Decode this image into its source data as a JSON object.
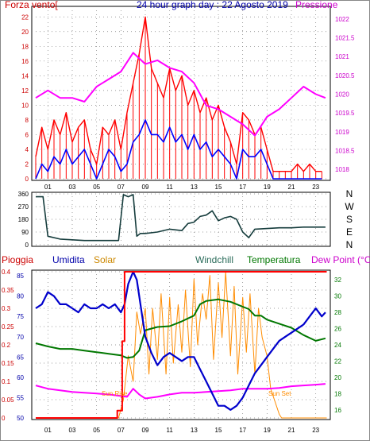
{
  "chart_data": [
    {
      "type": "line",
      "panel": "wind-pressure",
      "title": "24 hour graph day : 22 Agosto 2019",
      "left_label": "Forza vento[",
      "right_label": "Pressione",
      "x_ticks": [
        "01",
        "03",
        "05",
        "07",
        "09",
        "11",
        "13",
        "15",
        "17",
        "19",
        "21",
        "23"
      ],
      "y_left_ticks": [
        0,
        2,
        4,
        6,
        8,
        10,
        12,
        14,
        16,
        18,
        20,
        22
      ],
      "y_right_ticks": [
        1018,
        1018.5,
        1019,
        1019.5,
        1020,
        1020.5,
        1021,
        1021.5,
        1022
      ],
      "ylim_left": [
        0,
        23
      ],
      "ylim_right": [
        1017.75,
        1022.25
      ],
      "grid": true,
      "colors": {
        "gust": "#ff0000",
        "wind": "#0000ff",
        "pressure": "#ff00ff",
        "left_axis": "#cc0000",
        "right_axis": "#cc00cc"
      },
      "series": [
        {
          "key": "gust",
          "x": [
            0,
            0.5,
            1,
            1.5,
            2,
            2.5,
            3,
            3.5,
            4,
            4.5,
            5,
            5.5,
            6,
            6.5,
            7,
            7.5,
            8,
            8.5,
            9,
            9.5,
            10,
            10.5,
            11,
            11.5,
            12,
            12.5,
            13,
            13.5,
            14,
            14.5,
            15,
            15.5,
            16,
            16.5,
            17,
            17.5,
            18,
            18.5,
            19,
            19.5,
            20,
            20.5,
            21,
            21.5,
            22,
            22.5,
            23,
            23.5
          ],
          "y": [
            3,
            7,
            4,
            8,
            6,
            9,
            5,
            7,
            8,
            4,
            2,
            7,
            6,
            8,
            4,
            9,
            13,
            17,
            22,
            15,
            13,
            11,
            15,
            12,
            14,
            10,
            12,
            9,
            11,
            8,
            10,
            7,
            5,
            2,
            9,
            8,
            6,
            7,
            4,
            1,
            1,
            1,
            1,
            2,
            1,
            2,
            1,
            1
          ]
        },
        {
          "key": "wind",
          "x": [
            0,
            0.5,
            1,
            1.5,
            2,
            2.5,
            3,
            3.5,
            4,
            4.5,
            5,
            5.5,
            6,
            6.5,
            7,
            7.5,
            8,
            8.5,
            9,
            9.5,
            10,
            10.5,
            11,
            11.5,
            12,
            12.5,
            13,
            13.5,
            14,
            14.5,
            15,
            15.5,
            16,
            16.5,
            17,
            17.5,
            18,
            18.5,
            19,
            19.5,
            20,
            20.5,
            21,
            21.5,
            22,
            22.5,
            23,
            23.5
          ],
          "y": [
            0,
            2,
            1,
            3,
            2,
            4,
            2,
            3,
            4,
            2,
            0,
            2,
            4,
            3,
            1,
            2,
            5,
            6,
            8,
            6,
            6,
            5,
            7,
            5,
            6,
            4,
            6,
            4,
            5,
            3,
            4,
            3,
            2,
            0,
            4,
            3,
            3,
            4,
            2,
            0,
            0,
            0,
            0,
            0,
            0,
            0,
            0,
            0
          ]
        },
        {
          "key": "pressure",
          "x": [
            0,
            1,
            2,
            3,
            4,
            5,
            6,
            7,
            8,
            9,
            10,
            11,
            12,
            13,
            14,
            15,
            16,
            17,
            18,
            19,
            20,
            21,
            22,
            23,
            23.8
          ],
          "y": [
            1019.9,
            1020.1,
            1019.9,
            1019.9,
            1019.8,
            1020.2,
            1020.4,
            1020.6,
            1021.1,
            1020.8,
            1020.9,
            1020.7,
            1020.6,
            1020.3,
            1019.7,
            1019.6,
            1019.4,
            1019.2,
            1018.9,
            1019.4,
            1019.6,
            1019.9,
            1020.2,
            1020.0,
            1019.9
          ]
        }
      ]
    },
    {
      "type": "line",
      "panel": "wind-direction",
      "y_left_ticks": [
        0,
        90,
        180,
        270,
        360
      ],
      "ylim": [
        0,
        360
      ],
      "compass_labels": [
        "N",
        "W",
        "S",
        "E",
        "N"
      ],
      "x_ticks": [
        "01",
        "03",
        "05",
        "07",
        "09",
        "11",
        "13",
        "15",
        "17",
        "19",
        "21",
        "23"
      ],
      "grid": true,
      "colors": {
        "direction": "#153c3c"
      },
      "series": [
        {
          "key": "direction",
          "x": [
            0,
            0.3,
            0.6,
            1,
            2,
            3,
            4,
            5,
            6,
            6.8,
            7.2,
            7.6,
            8,
            8.3,
            8.6,
            9,
            10,
            11,
            12,
            12.5,
            13,
            13.5,
            14,
            14.5,
            15,
            15.5,
            16,
            16.5,
            17,
            17.5,
            18,
            19,
            20,
            21,
            22,
            23,
            23.8
          ],
          "y": [
            340,
            340,
            340,
            60,
            40,
            35,
            30,
            30,
            30,
            30,
            355,
            340,
            355,
            60,
            80,
            80,
            90,
            110,
            100,
            150,
            160,
            200,
            210,
            240,
            170,
            190,
            200,
            180,
            90,
            50,
            110,
            115,
            120,
            120,
            125,
            125,
            125
          ]
        }
      ]
    },
    {
      "type": "line",
      "panel": "rain-humidity-temp",
      "labels": [
        "Pioggia",
        "Umidita",
        "Solar",
        "Windchill",
        "Temperatura",
        "Dew Point (°C)"
      ],
      "annotations": [
        "Sun Rise",
        "Sun Set"
      ],
      "x_ticks": [
        "01",
        "03",
        "05",
        "07",
        "09",
        "11",
        "13",
        "15",
        "17",
        "19",
        "21",
        "23"
      ],
      "y_left_outer_ticks": [
        "0",
        "0.05",
        "0.1",
        "0.15",
        "0.2",
        "0.25",
        "0.3",
        "0.35",
        "0.4"
      ],
      "y_left_inner_ticks": [
        "50",
        "55",
        "60",
        "65",
        "70",
        "75",
        "80",
        "85"
      ],
      "y_right_ticks": [
        "16",
        "18",
        "20",
        "22",
        "24",
        "26",
        "28",
        "30",
        "32"
      ],
      "ylim_rain": [
        0,
        0.4
      ],
      "ylim_humidity": [
        50,
        86
      ],
      "ylim_temp": [
        15,
        33
      ],
      "grid": true,
      "colors": {
        "rain": "#ff0000",
        "humidity": "#0000cc",
        "solar": "#ff8c00",
        "temperature": "#007700",
        "dewpoint": "#ff00ff",
        "axis_rain": "#cc0000",
        "axis_humidity": "#0000aa",
        "axis_temp": "#007700"
      },
      "series": [
        {
          "key": "rain",
          "x": [
            0,
            6.7,
            6.7,
            7.1,
            7.1,
            7.3,
            7.3,
            23.9
          ],
          "y": [
            0,
            0,
            0.02,
            0.02,
            0.21,
            0.21,
            0.4,
            0.4
          ]
        },
        {
          "key": "humidity",
          "x": [
            0,
            0.5,
            1,
            1.5,
            2,
            2.5,
            3,
            3.5,
            4,
            4.5,
            5,
            5.5,
            6,
            6.5,
            7,
            7.3,
            7.6,
            8,
            8.3,
            8.7,
            9,
            9.5,
            10,
            10.5,
            11,
            11.5,
            12,
            12.5,
            13,
            13.5,
            14,
            14.5,
            15,
            15.5,
            16,
            16.5,
            17,
            17.5,
            18,
            18.5,
            19,
            19.5,
            20,
            20.5,
            21,
            21.5,
            22,
            22.5,
            23,
            23.5,
            23.8
          ],
          "y": [
            77,
            78,
            81,
            80,
            78,
            78,
            77,
            76,
            78,
            77,
            77,
            78,
            77,
            78,
            76,
            78,
            83,
            86,
            84,
            76,
            70,
            66,
            63,
            65,
            66,
            65,
            64,
            65,
            65,
            62,
            59,
            56,
            53,
            53,
            52,
            53,
            55,
            58,
            61,
            63,
            65,
            67,
            69,
            70,
            71,
            72,
            73,
            75,
            77,
            75,
            76
          ]
        },
        {
          "key": "temperature",
          "x": [
            0,
            1,
            2,
            3,
            4,
            5,
            6,
            7,
            7.5,
            8,
            8.5,
            9,
            10,
            11,
            12,
            13,
            13.5,
            14,
            15,
            16,
            17,
            17.5,
            18,
            18.5,
            19,
            20,
            21,
            22,
            23,
            23.8
          ],
          "y": [
            24.2,
            23.8,
            23.5,
            23.5,
            23.3,
            23.1,
            22.9,
            22.7,
            22.4,
            22.5,
            23.3,
            25.8,
            26.2,
            26.3,
            26.9,
            27.6,
            29,
            29.4,
            29.6,
            29.3,
            28.7,
            28.4,
            27.6,
            27.6,
            27.1,
            26.6,
            26.1,
            25.2,
            24.5,
            24.8
          ]
        },
        {
          "key": "dewpoint",
          "x": [
            0,
            0.5,
            1,
            2,
            3,
            4,
            5,
            6,
            7,
            7.5,
            8,
            8.5,
            9,
            10,
            11,
            12,
            13,
            14,
            15,
            16,
            17,
            18,
            19,
            20,
            21,
            22,
            23,
            23.8
          ],
          "y": [
            19,
            18.8,
            18.6,
            18.4,
            18.2,
            18.1,
            18,
            17.9,
            17.7,
            17.6,
            18.6,
            17.9,
            17.4,
            17.6,
            17.9,
            18.1,
            18.1,
            18.2,
            18.3,
            18.4,
            18.6,
            18.6,
            18.6,
            18.7,
            18.9,
            19,
            19.1,
            19.2
          ]
        },
        {
          "key": "solar",
          "x": [
            0,
            6.8,
            7.2,
            7.6,
            8,
            8.3,
            8.6,
            9,
            9.3,
            9.6,
            10,
            10.3,
            10.7,
            11,
            11.3,
            11.7,
            12,
            12.3,
            12.7,
            13,
            13.3,
            13.7,
            14,
            14.3,
            14.6,
            15,
            15.3,
            15.6,
            16,
            16.3,
            16.6,
            17,
            17.3,
            17.6,
            18,
            18.3,
            18.6,
            19,
            19.3,
            19.7,
            20,
            20.2,
            20.5,
            23.9
          ],
          "y": [
            0,
            0,
            0.05,
            0.17,
            0.1,
            0.29,
            0.23,
            0.3,
            0.12,
            0.3,
            0.16,
            0.34,
            0.12,
            0.33,
            0.15,
            0.31,
            0.18,
            0.35,
            0.14,
            0.38,
            0.2,
            0.34,
            0.27,
            0.39,
            0.16,
            0.37,
            0.22,
            0.4,
            0.17,
            0.36,
            0.12,
            0.33,
            0.18,
            0.34,
            0.12,
            0.3,
            0.22,
            0.17,
            0.08,
            0.04,
            0.01,
            0,
            0,
            0
          ]
        }
      ]
    }
  ]
}
